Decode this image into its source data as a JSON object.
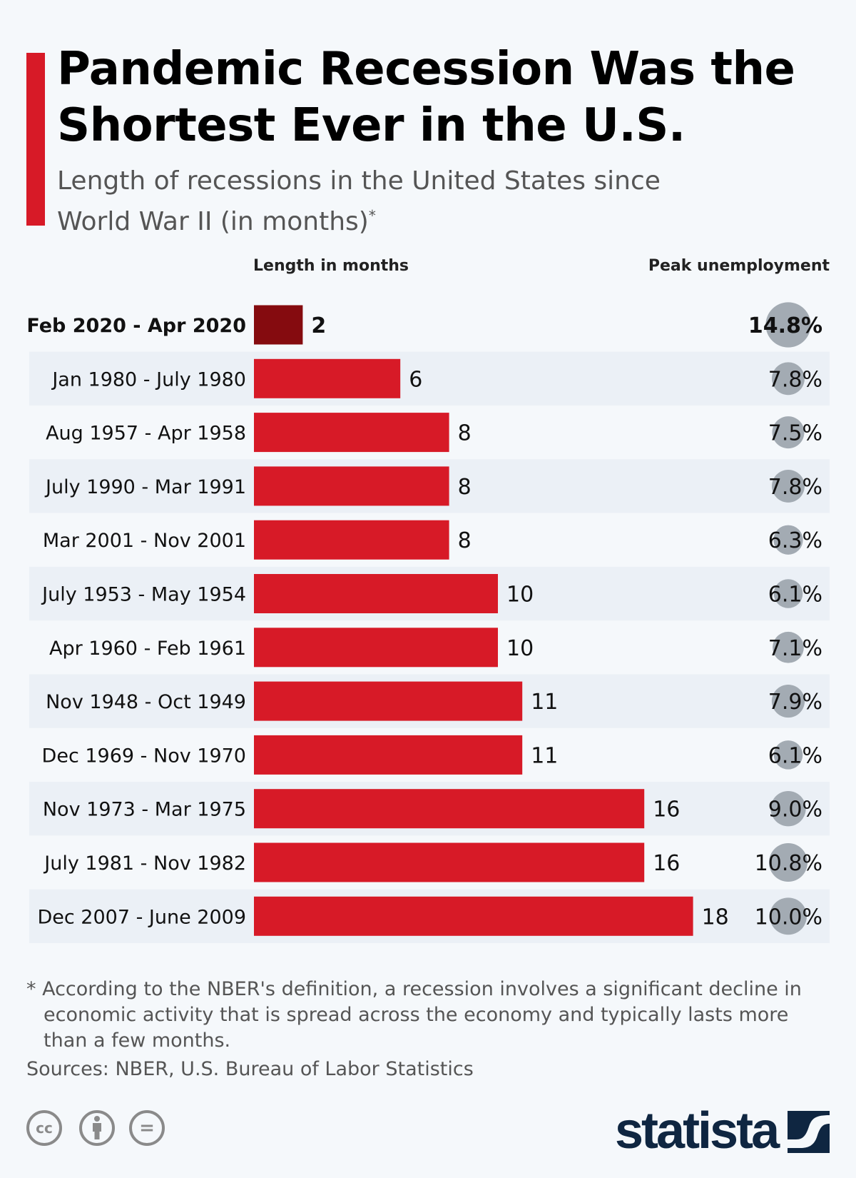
{
  "title": "Pandemic Recession Was the Shortest Ever in the U.S.",
  "subtitle": "Length of recessions in the United States since World War II (in months)",
  "subtitle_mark": "*",
  "colors": {
    "accent": "#d71a27",
    "highlight": "#850b0f",
    "bubble": "#a3abb3",
    "row_alt": "#ebf0f6",
    "brand": "#0f2641"
  },
  "chart_data": {
    "type": "bar",
    "orientation": "horizontal",
    "column_headers": {
      "length": "Length in months",
      "unemployment": "Peak unemployment"
    },
    "categories": [
      "Feb 2020 - Apr 2020",
      "Jan 1980 - July 1980",
      "Aug 1957 - Apr 1958",
      "July 1990 - Mar 1991",
      "Mar 2001 - Nov 2001",
      "July 1953 - May 1954",
      "Apr 1960 - Feb 1961",
      "Nov 1948 - Oct 1949",
      "Dec 1969 - Nov 1970",
      "Nov 1973 - Mar 1975",
      "July 1981 - Nov 1982",
      "Dec 2007 - June 2009"
    ],
    "values": [
      2,
      6,
      8,
      8,
      8,
      10,
      10,
      11,
      11,
      16,
      16,
      18
    ],
    "peak_unemployment": [
      14.8,
      7.8,
      7.5,
      7.8,
      6.3,
      6.1,
      7.1,
      7.9,
      6.1,
      9.0,
      10.8,
      10.0
    ],
    "peak_unemployment_labels": [
      "14.8%",
      "7.8%",
      "7.5%",
      "7.8%",
      "6.3%",
      "6.1%",
      "7.1%",
      "7.9%",
      "6.1%",
      "9.0%",
      "10.8%",
      "10.0%"
    ],
    "highlighted_index": 0
  },
  "footnote": "* According to the NBER's definition, a recession involves a significant decline in economic activity that is spread across the economy and typically lasts more than a few months.",
  "sources": "Sources: NBER, U.S. Bureau of Labor Statistics",
  "license_icons": [
    "cc-icon",
    "by-icon",
    "nd-icon"
  ],
  "license_glyphs": {
    "cc": "cc",
    "nd": "="
  },
  "brand": "statista"
}
